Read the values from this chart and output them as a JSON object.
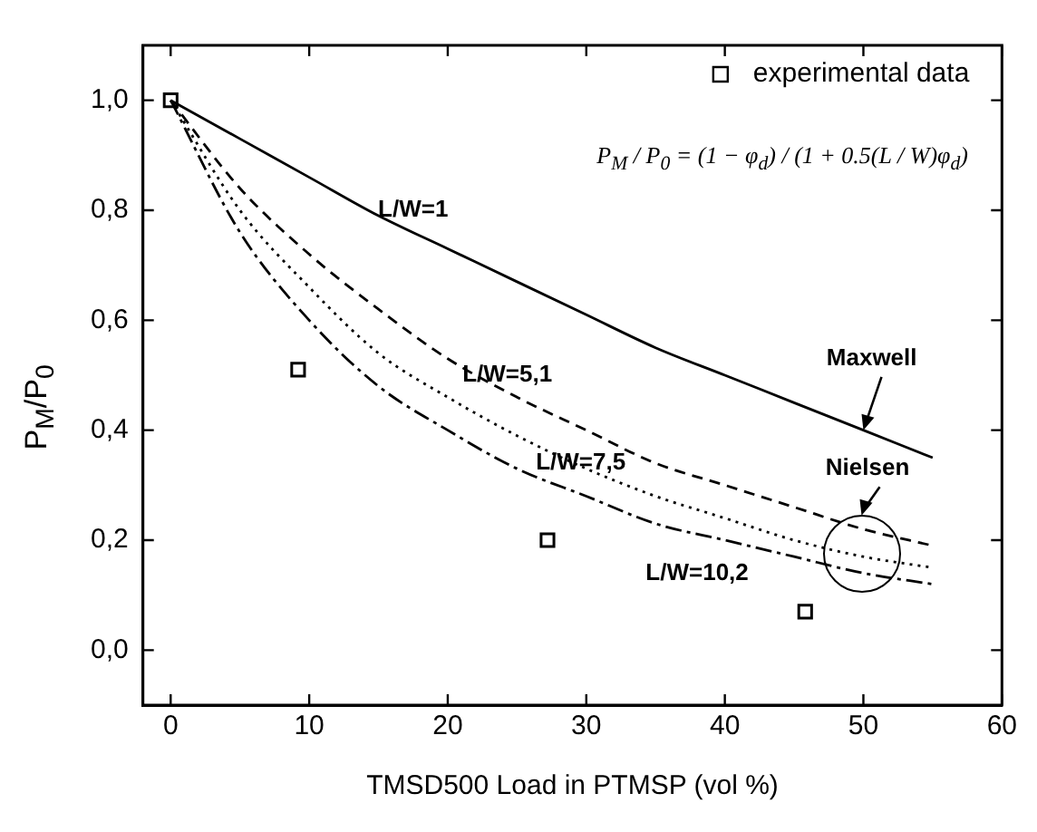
{
  "chart_data": {
    "type": "line",
    "xlabel": "TMSD500 Load in PTMSP (vol %)",
    "ylabel": "P$_{M}$/P$_{0}$",
    "xlim": [
      -2,
      60
    ],
    "xticks": [
      0,
      10,
      20,
      30,
      40,
      50,
      60
    ],
    "ylim": [
      -0.1,
      1.1
    ],
    "yticks": [
      {
        "value": 0,
        "label": "0,0"
      },
      {
        "value": 0.2,
        "label": "0,2"
      },
      {
        "value": 0.4,
        "label": "0,4"
      },
      {
        "value": 0.6,
        "label": "0,6"
      },
      {
        "value": 0.8,
        "label": "0,8"
      },
      {
        "value": 1,
        "label": "1,0"
      }
    ],
    "grid": false,
    "legend": "top right",
    "series": [
      {
        "name": "experimental data",
        "type": "scatter",
        "marker": "square",
        "color": "#000000",
        "x": [
          0,
          9.2,
          27.2,
          45.8
        ],
        "values": [
          1.0,
          0.51,
          0.2,
          0.07
        ]
      },
      {
        "name": "L/W=1",
        "marker": "none",
        "line_style": "solid",
        "color": "#000000",
        "x": [
          0,
          5,
          10,
          15,
          20,
          25,
          30,
          35,
          40,
          45,
          50,
          55
        ],
        "values": [
          1.0,
          0.93,
          0.86,
          0.79,
          0.73,
          0.67,
          0.61,
          0.55,
          0.5,
          0.45,
          0.4,
          0.35
        ]
      },
      {
        "name": "L/W=5,1",
        "marker": "none",
        "line_style": "dashed",
        "color": "#000000",
        "x": [
          0,
          5,
          10,
          15,
          20,
          25,
          30,
          35,
          40,
          45,
          50,
          55
        ],
        "values": [
          1.0,
          0.84,
          0.72,
          0.62,
          0.53,
          0.46,
          0.4,
          0.34,
          0.3,
          0.26,
          0.22,
          0.19
        ]
      },
      {
        "name": "L/W=7,5",
        "marker": "none",
        "line_style": "dotted",
        "color": "#000000",
        "x": [
          0,
          5,
          10,
          15,
          20,
          25,
          30,
          35,
          40,
          45,
          50,
          55
        ],
        "values": [
          1.0,
          0.8,
          0.66,
          0.54,
          0.46,
          0.39,
          0.33,
          0.28,
          0.24,
          0.2,
          0.17,
          0.15
        ]
      },
      {
        "name": "L/W=10,2",
        "marker": "none",
        "line_style": "dashdot",
        "color": "#000000",
        "x": [
          0,
          5,
          10,
          15,
          20,
          25,
          30,
          35,
          40,
          45,
          50,
          55
        ],
        "values": [
          1.0,
          0.76,
          0.6,
          0.48,
          0.4,
          0.33,
          0.28,
          0.23,
          0.2,
          0.17,
          0.14,
          0.12
        ]
      }
    ],
    "annotations": [
      {
        "text": "Maxwell",
        "x": 50,
        "y": 0.4
      },
      {
        "text": "Nielsen",
        "x": 50,
        "y": 0.245
      },
      "P$_{M}$ / P$_{0}$ = (1 − φ$_{d}$) / (1 + 0.5(L / W)φ$_{d}$)"
    ]
  }
}
